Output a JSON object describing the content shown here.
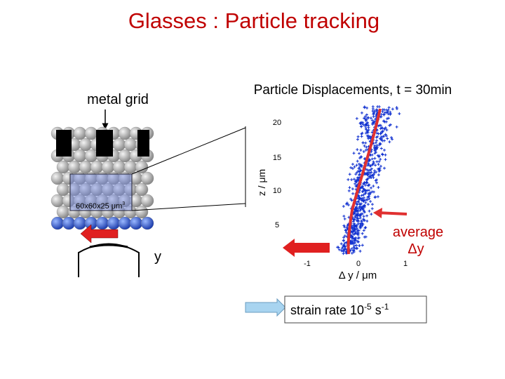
{
  "title": "Glasses : Particle tracking",
  "left_panel": {
    "label": "metal grid",
    "box_label": "60x60x25 μm",
    "box_label_exponent": "3",
    "axis_label": "y"
  },
  "plot": {
    "title": "Particle Displacements, t = 30min",
    "y_label": "z / μm",
    "x_label": "Δ y / μm",
    "yticks": [
      "20",
      "15",
      "10",
      "5"
    ],
    "xticks": [
      "-1",
      "0",
      "1"
    ]
  },
  "annotation": {
    "text": "average",
    "symbol": "Δy"
  },
  "strain_box": {
    "text": "strain rate 10",
    "exponent1": "-5",
    "unit": " s",
    "exponent2": "-1"
  }
}
